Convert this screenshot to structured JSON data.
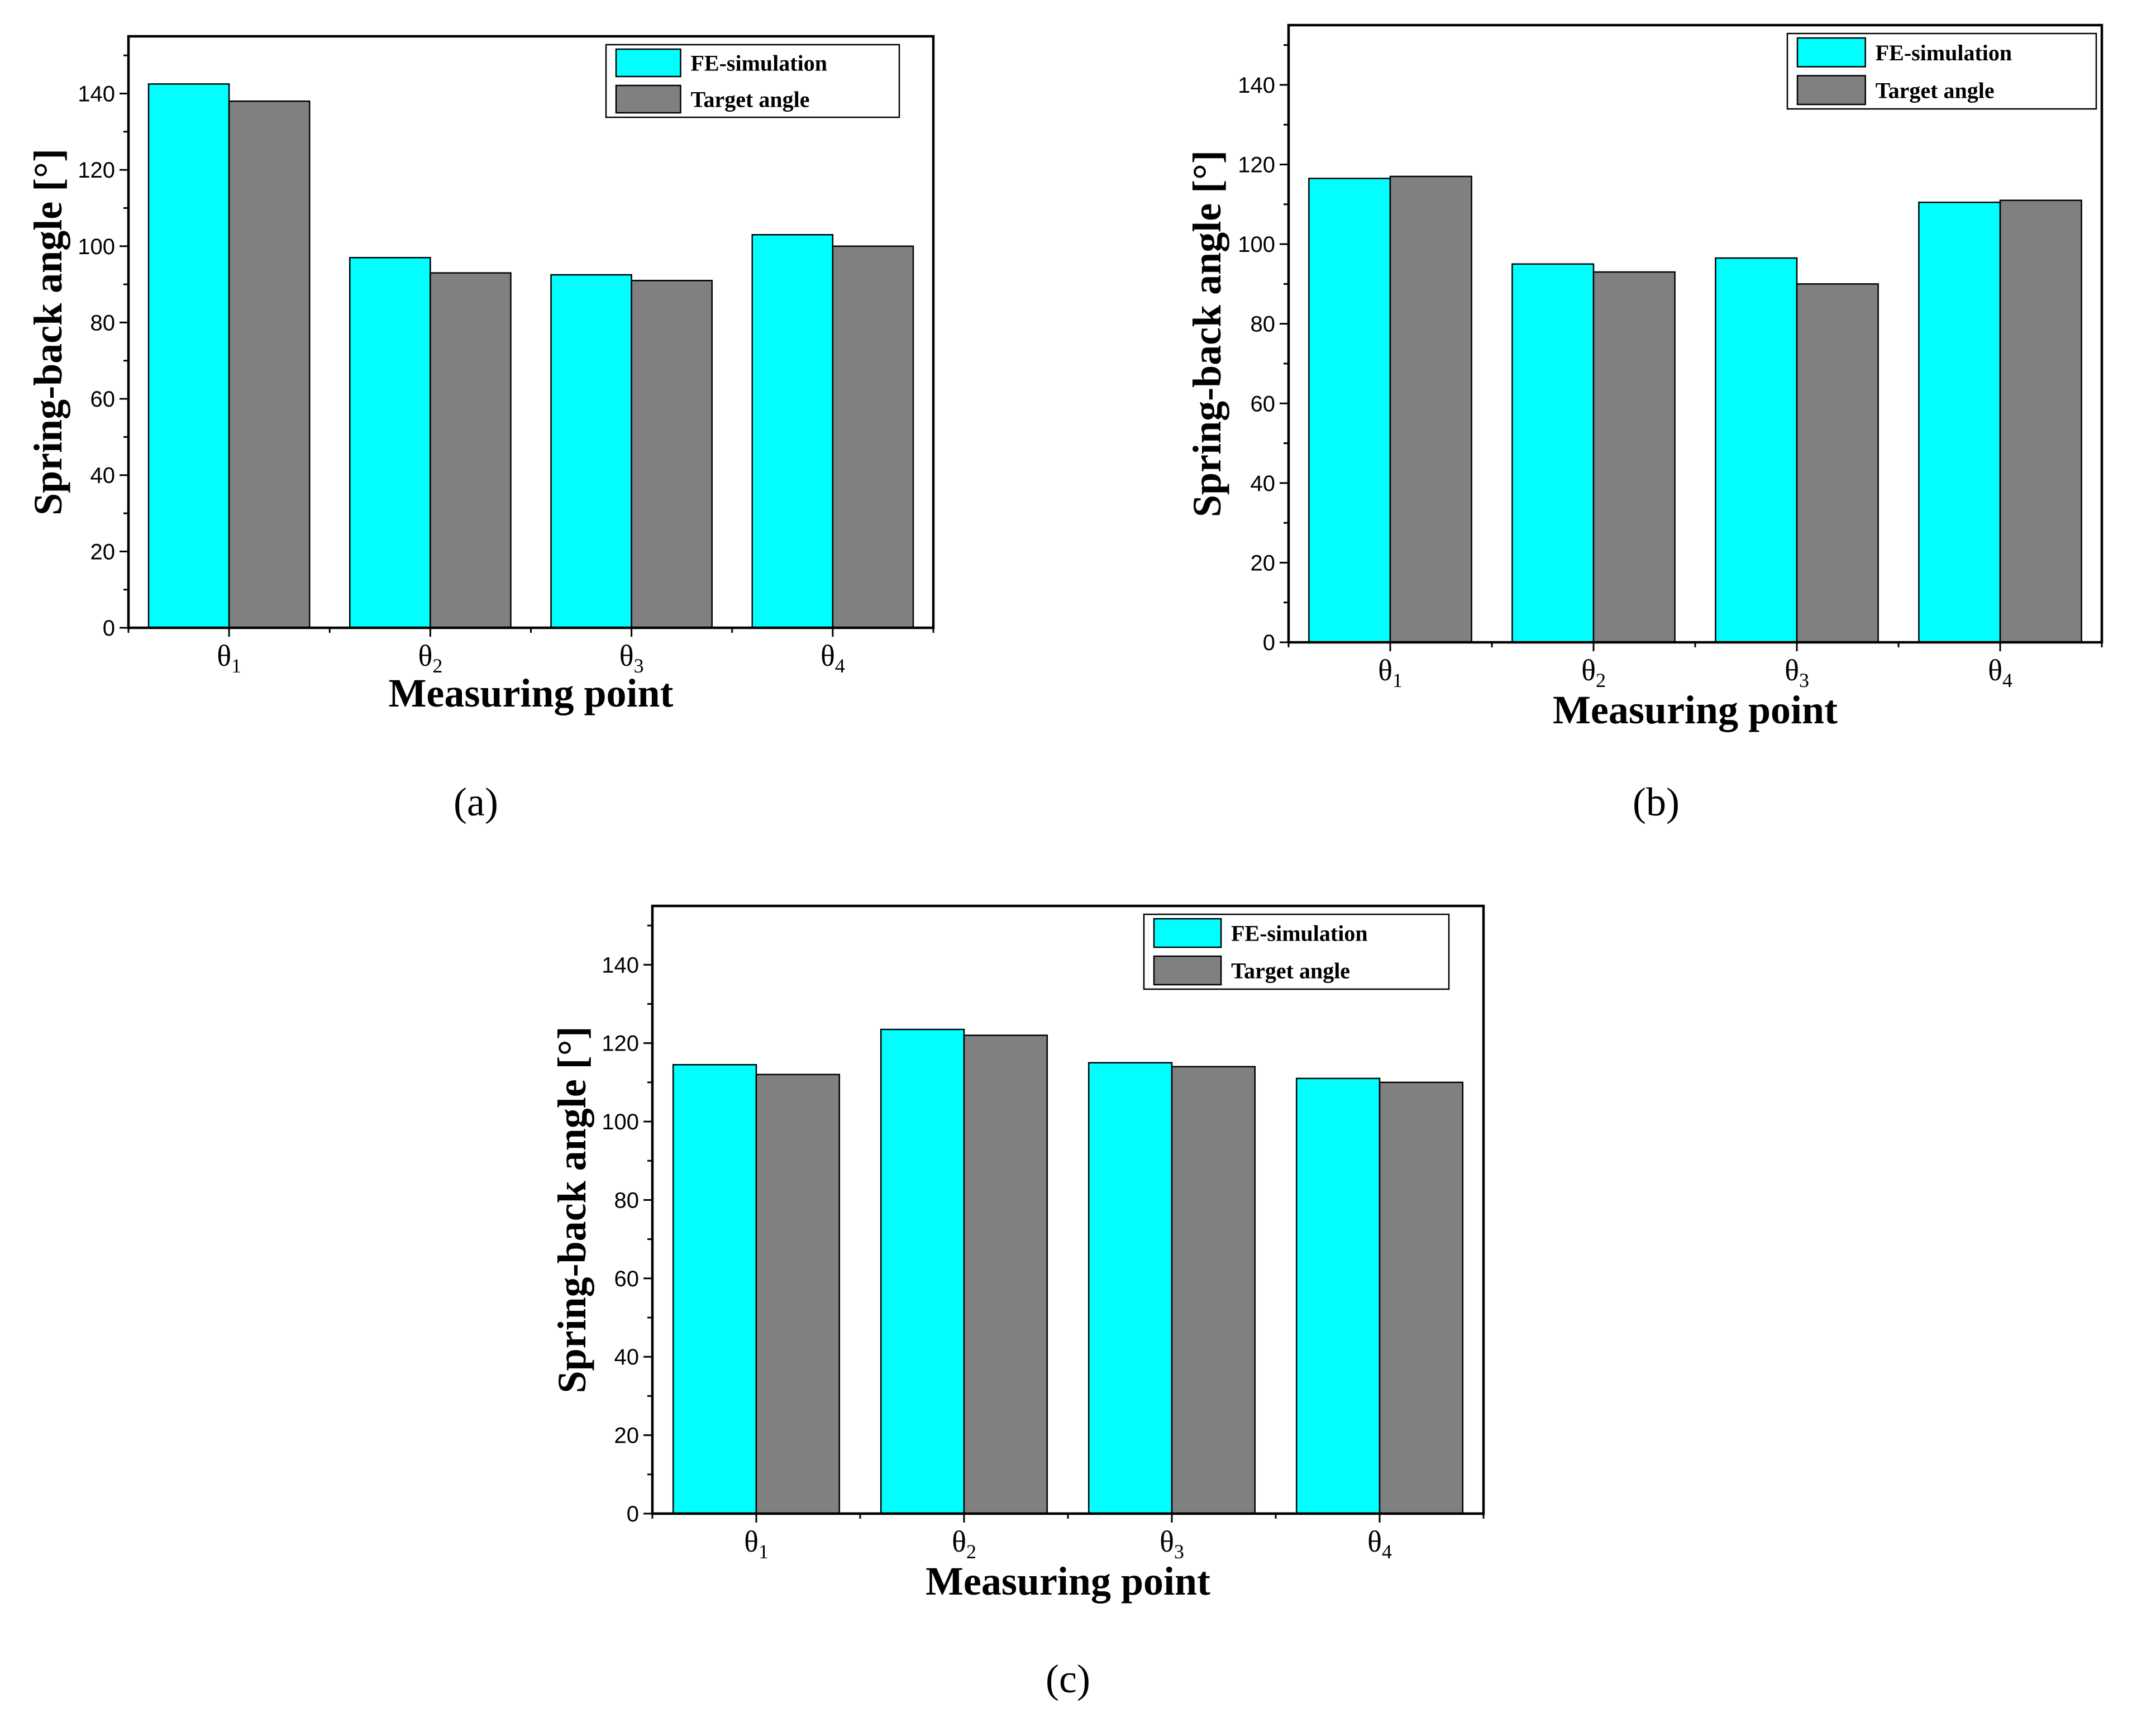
{
  "figure": {
    "colors": {
      "fe_simulation": "#00FFFF",
      "target_angle": "#808080",
      "axis": "#000000",
      "background": "#FFFFFF"
    }
  },
  "chart_data": [
    {
      "panel_label": "(a)",
      "type": "bar",
      "categories": [
        "θ1",
        "θ2",
        "θ3",
        "θ4"
      ],
      "series": [
        {
          "name": "FE-simulation",
          "values": [
            142.5,
            97,
            92.5,
            103
          ]
        },
        {
          "name": "Target angle",
          "values": [
            138,
            93,
            91,
            100
          ]
        }
      ],
      "xlabel": "Measuring point",
      "ylabel": "Spring-back angle [°]",
      "ylim": [
        0,
        155
      ],
      "yticks": [
        0,
        20,
        40,
        60,
        80,
        100,
        120,
        140
      ],
      "grid": false,
      "legend_position": "top-right"
    },
    {
      "panel_label": "(b)",
      "type": "bar",
      "categories": [
        "θ1",
        "θ2",
        "θ3",
        "θ4"
      ],
      "series": [
        {
          "name": "FE-simulation",
          "values": [
            116.5,
            95,
            96.5,
            110.5
          ]
        },
        {
          "name": "Target angle",
          "values": [
            117,
            93,
            90,
            111
          ]
        }
      ],
      "xlabel": "Measuring point",
      "ylabel": "Spring-back angle [°]",
      "ylim": [
        0,
        155
      ],
      "yticks": [
        0,
        20,
        40,
        60,
        80,
        100,
        120,
        140
      ],
      "grid": false,
      "legend_position": "top-right"
    },
    {
      "panel_label": "(c)",
      "type": "bar",
      "categories": [
        "θ1",
        "θ2",
        "θ3",
        "θ4"
      ],
      "series": [
        {
          "name": "FE-simulation",
          "values": [
            114.5,
            123.5,
            115,
            111
          ]
        },
        {
          "name": "Target angle",
          "values": [
            112,
            122,
            114,
            110
          ]
        }
      ],
      "xlabel": "Measuring point",
      "ylabel": "Spring-back angle [°]",
      "ylim": [
        0,
        155
      ],
      "yticks": [
        0,
        20,
        40,
        60,
        80,
        100,
        120,
        140
      ],
      "grid": false,
      "legend_position": "top-right"
    }
  ]
}
